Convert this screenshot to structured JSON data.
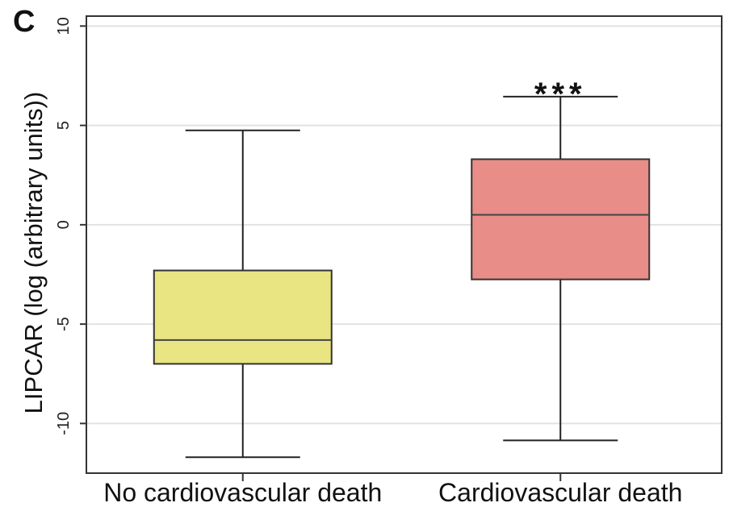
{
  "panel_label": "C",
  "chart_data": {
    "type": "boxplot",
    "ylabel": "LIPCAR (log (arbitrary units))",
    "xlabel": "",
    "ylim": [
      -12.5,
      10.5
    ],
    "yticks": [
      10,
      5,
      0,
      -5,
      -10
    ],
    "ytick_labels": [
      "10",
      "5",
      "0",
      "-5",
      "-10"
    ],
    "grid": true,
    "categories": [
      "No cardiovascular death",
      "Cardiovascular death"
    ],
    "boxes": [
      {
        "category": "No cardiovascular death",
        "min": -11.7,
        "q1": -7.0,
        "median": -5.8,
        "q3": -2.3,
        "max": 4.75,
        "color": "#e9e583"
      },
      {
        "category": "Cardiovascular death",
        "min": -10.85,
        "q1": -2.75,
        "median": 0.5,
        "q3": 3.3,
        "max": 6.45,
        "color": "#e88d88"
      }
    ],
    "annotations": [
      {
        "category": "Cardiovascular death",
        "text": "***"
      }
    ]
  }
}
